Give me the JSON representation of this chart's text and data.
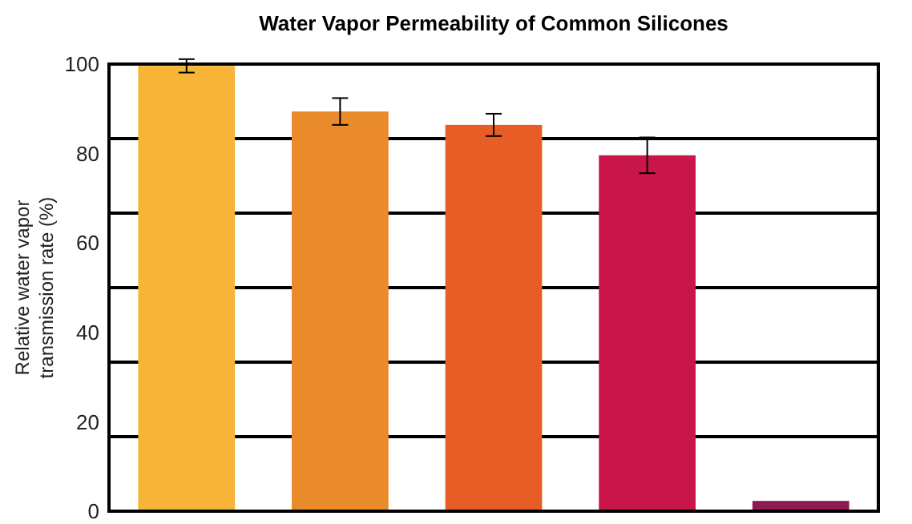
{
  "chart_data": {
    "type": "bar",
    "title": "Water Vapor Permeability of Common Silicones",
    "ylabel": "Relative water vapor transmission rate (%)",
    "categories": [
      null,
      null,
      null,
      null,
      null
    ],
    "values": [
      99.6,
      89.4,
      86.4,
      79.6,
      2.3
    ],
    "errors": [
      1.5,
      3,
      2.5,
      4,
      null
    ],
    "colors": [
      "#f7b538",
      "#e98a2b",
      "#e85c25",
      "#c8164a",
      "#8e1b4f"
    ],
    "ylim": [
      0,
      100
    ],
    "yticks": [
      0,
      20,
      40,
      60,
      80,
      100,
      {
        "value": 16.67,
        "label": null
      },
      {
        "value": 33.33,
        "label": null
      },
      {
        "value": 50,
        "label": null
      },
      {
        "value": 66.67,
        "label": null
      },
      {
        "value": 83.33,
        "label": null
      }
    ],
    "grid": true
  }
}
